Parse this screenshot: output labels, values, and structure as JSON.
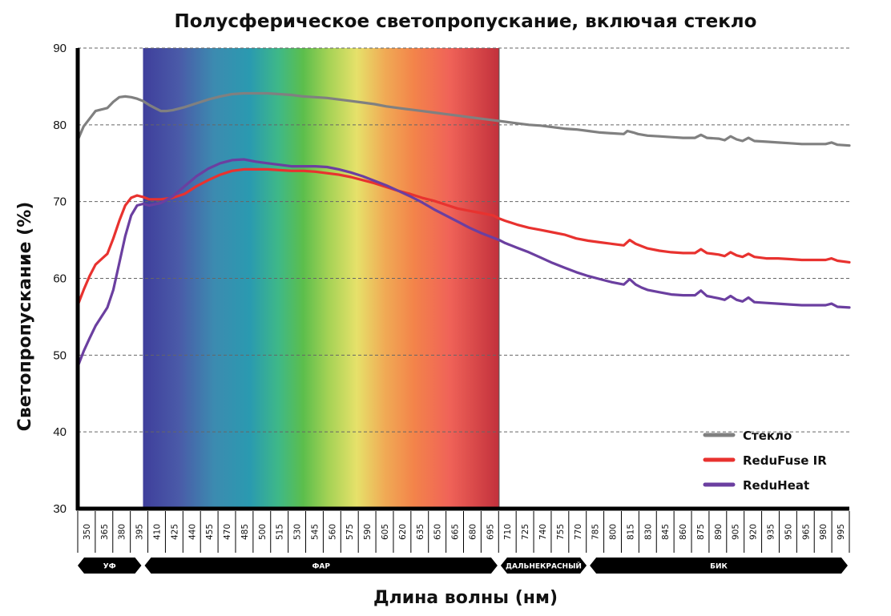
{
  "chart_data": {
    "type": "line",
    "title": "Полусферическое светопропускание, включая стекло",
    "xlabel": "Длина волны (нм)",
    "ylabel": "Светопропускание  (%)",
    "xlim": [
      350,
      1000
    ],
    "ylim": [
      30,
      90
    ],
    "yticks": [
      30,
      40,
      50,
      60,
      70,
      80,
      90
    ],
    "xticks": [
      "350",
      "365",
      "380",
      "395",
      "410",
      "425",
      "440",
      "455",
      "470",
      "485",
      "500",
      "515",
      "530",
      "545",
      "560",
      "575",
      "590",
      "605",
      "620",
      "635",
      "650",
      "665",
      "680",
      "695",
      "710",
      "725",
      "740",
      "755",
      "770",
      "785",
      "800",
      "815",
      "830",
      "845",
      "860",
      "875",
      "890",
      "905",
      "920",
      "935",
      "950",
      "965",
      "980",
      "995"
    ],
    "grid": "horizontal-dashed",
    "legend_position": "bottom-right",
    "bands": [
      {
        "label": "УФ",
        "from": 350,
        "to": 405
      },
      {
        "label": "ФАР",
        "from": 405,
        "to": 705
      },
      {
        "label": "ДАЛЬНЕКРАСНЫЙ",
        "from": 705,
        "to": 780
      },
      {
        "label": "БИК",
        "from": 780,
        "to": 1000
      }
    ],
    "series": [
      {
        "name": "Стекло",
        "color": "#808080",
        "points": [
          [
            350,
            78.0
          ],
          [
            355,
            79.8
          ],
          [
            360,
            80.8
          ],
          [
            365,
            81.8
          ],
          [
            370,
            82.0
          ],
          [
            375,
            82.2
          ],
          [
            380,
            83.0
          ],
          [
            385,
            83.6
          ],
          [
            390,
            83.7
          ],
          [
            395,
            83.6
          ],
          [
            400,
            83.4
          ],
          [
            405,
            83.1
          ],
          [
            410,
            82.6
          ],
          [
            415,
            82.2
          ],
          [
            420,
            81.8
          ],
          [
            425,
            81.8
          ],
          [
            430,
            81.9
          ],
          [
            440,
            82.3
          ],
          [
            450,
            82.8
          ],
          [
            460,
            83.3
          ],
          [
            470,
            83.7
          ],
          [
            480,
            84.0
          ],
          [
            490,
            84.1
          ],
          [
            500,
            84.1
          ],
          [
            510,
            84.1
          ],
          [
            520,
            84.0
          ],
          [
            530,
            83.9
          ],
          [
            540,
            83.7
          ],
          [
            550,
            83.6
          ],
          [
            560,
            83.5
          ],
          [
            570,
            83.3
          ],
          [
            580,
            83.1
          ],
          [
            590,
            82.9
          ],
          [
            600,
            82.7
          ],
          [
            610,
            82.4
          ],
          [
            620,
            82.2
          ],
          [
            630,
            82.0
          ],
          [
            640,
            81.8
          ],
          [
            650,
            81.6
          ],
          [
            660,
            81.4
          ],
          [
            670,
            81.2
          ],
          [
            680,
            81.0
          ],
          [
            690,
            80.8
          ],
          [
            700,
            80.6
          ],
          [
            710,
            80.4
          ],
          [
            720,
            80.2
          ],
          [
            730,
            80.0
          ],
          [
            740,
            79.9
          ],
          [
            750,
            79.7
          ],
          [
            760,
            79.5
          ],
          [
            770,
            79.4
          ],
          [
            780,
            79.2
          ],
          [
            790,
            79.0
          ],
          [
            800,
            78.9
          ],
          [
            810,
            78.8
          ],
          [
            813,
            79.2
          ],
          [
            818,
            79.0
          ],
          [
            822,
            78.8
          ],
          [
            830,
            78.6
          ],
          [
            840,
            78.5
          ],
          [
            850,
            78.4
          ],
          [
            860,
            78.3
          ],
          [
            870,
            78.3
          ],
          [
            875,
            78.7
          ],
          [
            880,
            78.3
          ],
          [
            890,
            78.2
          ],
          [
            895,
            78.0
          ],
          [
            900,
            78.5
          ],
          [
            905,
            78.1
          ],
          [
            910,
            77.9
          ],
          [
            915,
            78.3
          ],
          [
            920,
            77.9
          ],
          [
            930,
            77.8
          ],
          [
            940,
            77.7
          ],
          [
            950,
            77.6
          ],
          [
            960,
            77.5
          ],
          [
            970,
            77.5
          ],
          [
            980,
            77.5
          ],
          [
            985,
            77.7
          ],
          [
            990,
            77.4
          ],
          [
            1000,
            77.3
          ]
        ]
      },
      {
        "name": "ReduFuse IR",
        "color": "#e8322f",
        "points": [
          [
            350,
            56.5
          ],
          [
            355,
            58.5
          ],
          [
            360,
            60.3
          ],
          [
            365,
            61.8
          ],
          [
            370,
            62.5
          ],
          [
            375,
            63.2
          ],
          [
            380,
            65.2
          ],
          [
            385,
            67.5
          ],
          [
            390,
            69.5
          ],
          [
            395,
            70.5
          ],
          [
            400,
            70.8
          ],
          [
            405,
            70.6
          ],
          [
            410,
            70.3
          ],
          [
            420,
            70.3
          ],
          [
            430,
            70.5
          ],
          [
            440,
            71.0
          ],
          [
            450,
            72.0
          ],
          [
            460,
            72.8
          ],
          [
            470,
            73.5
          ],
          [
            480,
            74.0
          ],
          [
            490,
            74.2
          ],
          [
            500,
            74.2
          ],
          [
            510,
            74.2
          ],
          [
            520,
            74.1
          ],
          [
            530,
            74.0
          ],
          [
            540,
            74.0
          ],
          [
            550,
            73.9
          ],
          [
            560,
            73.7
          ],
          [
            570,
            73.5
          ],
          [
            580,
            73.2
          ],
          [
            590,
            72.8
          ],
          [
            600,
            72.4
          ],
          [
            610,
            71.9
          ],
          [
            620,
            71.4
          ],
          [
            630,
            71.0
          ],
          [
            640,
            70.5
          ],
          [
            650,
            70.1
          ],
          [
            660,
            69.6
          ],
          [
            670,
            69.1
          ],
          [
            680,
            68.8
          ],
          [
            690,
            68.5
          ],
          [
            700,
            68.2
          ],
          [
            705,
            67.8
          ],
          [
            710,
            67.5
          ],
          [
            720,
            67.0
          ],
          [
            730,
            66.6
          ],
          [
            740,
            66.3
          ],
          [
            750,
            66.0
          ],
          [
            760,
            65.7
          ],
          [
            770,
            65.2
          ],
          [
            780,
            64.9
          ],
          [
            790,
            64.7
          ],
          [
            800,
            64.5
          ],
          [
            810,
            64.3
          ],
          [
            815,
            65.0
          ],
          [
            820,
            64.5
          ],
          [
            825,
            64.2
          ],
          [
            830,
            63.9
          ],
          [
            840,
            63.6
          ],
          [
            850,
            63.4
          ],
          [
            860,
            63.3
          ],
          [
            870,
            63.3
          ],
          [
            875,
            63.8
          ],
          [
            880,
            63.3
          ],
          [
            890,
            63.1
          ],
          [
            895,
            62.9
          ],
          [
            900,
            63.4
          ],
          [
            905,
            63.0
          ],
          [
            910,
            62.8
          ],
          [
            915,
            63.2
          ],
          [
            920,
            62.8
          ],
          [
            930,
            62.6
          ],
          [
            940,
            62.6
          ],
          [
            950,
            62.5
          ],
          [
            960,
            62.4
          ],
          [
            970,
            62.4
          ],
          [
            980,
            62.4
          ],
          [
            985,
            62.6
          ],
          [
            990,
            62.3
          ],
          [
            1000,
            62.1
          ]
        ]
      },
      {
        "name": "ReduHeat",
        "color": "#6b3fa0",
        "points": [
          [
            350,
            48.5
          ],
          [
            355,
            50.5
          ],
          [
            360,
            52.2
          ],
          [
            365,
            53.8
          ],
          [
            370,
            55.0
          ],
          [
            375,
            56.2
          ],
          [
            380,
            58.5
          ],
          [
            385,
            62.0
          ],
          [
            390,
            65.5
          ],
          [
            395,
            68.2
          ],
          [
            400,
            69.5
          ],
          [
            405,
            69.7
          ],
          [
            410,
            69.5
          ],
          [
            420,
            69.8
          ],
          [
            430,
            70.7
          ],
          [
            440,
            72.0
          ],
          [
            450,
            73.3
          ],
          [
            460,
            74.3
          ],
          [
            470,
            75.0
          ],
          [
            480,
            75.4
          ],
          [
            490,
            75.5
          ],
          [
            500,
            75.2
          ],
          [
            510,
            75.0
          ],
          [
            520,
            74.8
          ],
          [
            530,
            74.6
          ],
          [
            540,
            74.6
          ],
          [
            550,
            74.6
          ],
          [
            560,
            74.5
          ],
          [
            570,
            74.2
          ],
          [
            580,
            73.8
          ],
          [
            590,
            73.3
          ],
          [
            600,
            72.7
          ],
          [
            610,
            72.1
          ],
          [
            620,
            71.4
          ],
          [
            630,
            70.7
          ],
          [
            640,
            69.9
          ],
          [
            650,
            69.0
          ],
          [
            660,
            68.2
          ],
          [
            670,
            67.4
          ],
          [
            680,
            66.6
          ],
          [
            690,
            65.9
          ],
          [
            700,
            65.3
          ],
          [
            705,
            65.0
          ],
          [
            710,
            64.6
          ],
          [
            720,
            64.0
          ],
          [
            730,
            63.4
          ],
          [
            740,
            62.7
          ],
          [
            750,
            62.0
          ],
          [
            760,
            61.4
          ],
          [
            770,
            60.8
          ],
          [
            780,
            60.3
          ],
          [
            790,
            59.9
          ],
          [
            800,
            59.5
          ],
          [
            810,
            59.2
          ],
          [
            815,
            59.9
          ],
          [
            820,
            59.2
          ],
          [
            825,
            58.8
          ],
          [
            830,
            58.5
          ],
          [
            840,
            58.2
          ],
          [
            850,
            57.9
          ],
          [
            860,
            57.8
          ],
          [
            870,
            57.8
          ],
          [
            875,
            58.4
          ],
          [
            880,
            57.7
          ],
          [
            890,
            57.4
          ],
          [
            895,
            57.2
          ],
          [
            900,
            57.7
          ],
          [
            905,
            57.2
          ],
          [
            910,
            57.0
          ],
          [
            915,
            57.5
          ],
          [
            920,
            56.9
          ],
          [
            930,
            56.8
          ],
          [
            940,
            56.7
          ],
          [
            950,
            56.6
          ],
          [
            960,
            56.5
          ],
          [
            970,
            56.5
          ],
          [
            980,
            56.5
          ],
          [
            985,
            56.7
          ],
          [
            990,
            56.3
          ],
          [
            1000,
            56.2
          ]
        ]
      }
    ]
  }
}
